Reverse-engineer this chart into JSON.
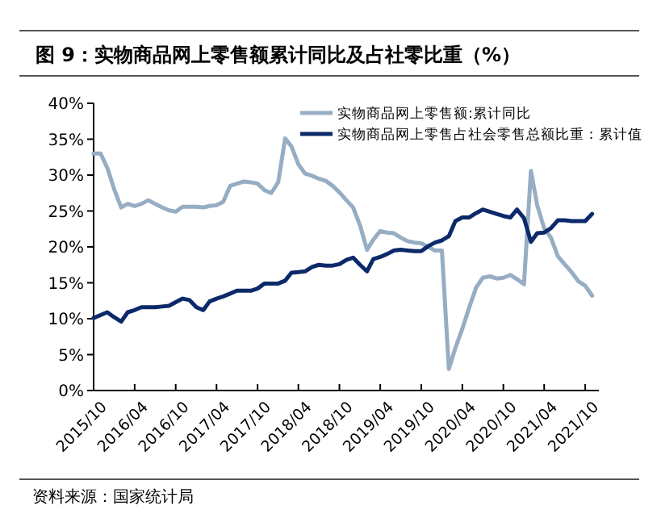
{
  "chart_data": {
    "type": "line",
    "title": "图 9：实物商品网上零售额累计同比及占社零比重（%）",
    "annotations": [
      "资料来源：国家统计局"
    ],
    "x": [
      "2015-10",
      "2015-11",
      "2015-12",
      "2016-01",
      "2016-02",
      "2016-03",
      "2016-04",
      "2016-05",
      "2016-06",
      "2016-07",
      "2016-08",
      "2016-09",
      "2016-10",
      "2016-11",
      "2016-12",
      "2017-01",
      "2017-02",
      "2017-03",
      "2017-04",
      "2017-05",
      "2017-06",
      "2017-07",
      "2017-08",
      "2017-09",
      "2017-10",
      "2017-11",
      "2017-12",
      "2018-01",
      "2018-02",
      "2018-03",
      "2018-04",
      "2018-05",
      "2018-06",
      "2018-07",
      "2018-08",
      "2018-09",
      "2018-10",
      "2018-11",
      "2018-12",
      "2019-01",
      "2019-02",
      "2019-03",
      "2019-04",
      "2019-05",
      "2019-06",
      "2019-07",
      "2019-08",
      "2019-09",
      "2019-10",
      "2019-11",
      "2019-12",
      "2020-01",
      "2020-02",
      "2020-03",
      "2020-04",
      "2020-05",
      "2020-06",
      "2020-07",
      "2020-08",
      "2020-09",
      "2020-10",
      "2020-11",
      "2020-12",
      "2021-01",
      "2021-02",
      "2021-03",
      "2021-04",
      "2021-05",
      "2021-06",
      "2021-07",
      "2021-08",
      "2021-09",
      "2021-10",
      "2021-11"
    ],
    "series": [
      {
        "name": "实物商品网上零售额:累计同比",
        "color": "#97adc3",
        "values": [
          33,
          33,
          31,
          28,
          25.5,
          26,
          25.7,
          26,
          26.5,
          26,
          25.5,
          25.1,
          24.9,
          25.6,
          25.6,
          25.6,
          25.5,
          25.7,
          25.8,
          26.3,
          28.5,
          28.8,
          29.1,
          29,
          28.8,
          27.9,
          27.5,
          29,
          35.1,
          34,
          31.5,
          30.2,
          29.9,
          29.5,
          29.2,
          28.5,
          27.6,
          26.5,
          25.5,
          23,
          19.6,
          21,
          22.2,
          22,
          21.9,
          21.3,
          20.8,
          20.6,
          20.5,
          20,
          19.5,
          19.5,
          3,
          5.9,
          8.6,
          11.5,
          14.3,
          15.7,
          15.9,
          15.6,
          15.7,
          16.1,
          15.5,
          14.8,
          30.6,
          25.8,
          22.6,
          21.3,
          18.7,
          17.6,
          16.5,
          15.2,
          14.6,
          13.2
        ]
      },
      {
        "name": "实物商品网上零售占社会零售总额比重：累计值",
        "color": "#0c2a6a",
        "values": [
          10.1,
          10.5,
          10.9,
          10.2,
          9.6,
          10.9,
          11.2,
          11.6,
          11.6,
          11.6,
          11.7,
          11.8,
          12.3,
          12.8,
          12.6,
          11.6,
          11.2,
          12.4,
          12.8,
          13.1,
          13.5,
          13.9,
          13.9,
          13.9,
          14.2,
          14.9,
          14.9,
          14.9,
          15.3,
          16.4,
          16.5,
          16.6,
          17.2,
          17.5,
          17.4,
          17.4,
          17.6,
          18.2,
          18.5,
          17.5,
          16.6,
          18.3,
          18.6,
          19,
          19.5,
          19.6,
          19.5,
          19.4,
          19.4,
          20.1,
          20.6,
          20.9,
          21.5,
          23.6,
          24.1,
          24.1,
          24.7,
          25.2,
          24.9,
          24.6,
          24.3,
          24.1,
          25.2,
          24,
          20.7,
          21.9,
          22,
          22.6,
          23.7,
          23.7,
          23.6,
          23.6,
          23.6,
          24.6
        ]
      }
    ],
    "xlim": [
      "2015-10",
      "2021-12"
    ],
    "xticks": [
      {
        "value": "2015-10",
        "label": "2015/10"
      },
      {
        "value": "2016-04",
        "label": "2016/04"
      },
      {
        "value": "2016-10",
        "label": "2016/10"
      },
      {
        "value": "2017-04",
        "label": "2017/04"
      },
      {
        "value": "2017-10",
        "label": "2017/10"
      },
      {
        "value": "2018-04",
        "label": "2018/04"
      },
      {
        "value": "2018-10",
        "label": "2018/10"
      },
      {
        "value": "2019-04",
        "label": "2019/04"
      },
      {
        "value": "2019-10",
        "label": "2019/10"
      },
      {
        "value": "2020-04",
        "label": "2020/04"
      },
      {
        "value": "2020-10",
        "label": "2020/10"
      },
      {
        "value": "2021-04",
        "label": "2021/04"
      },
      {
        "value": "2021-10",
        "label": "2021/10"
      }
    ],
    "ylim": [
      0,
      40
    ],
    "yticks": [
      {
        "value": 0,
        "label": "0%"
      },
      {
        "value": 5,
        "label": "5%"
      },
      {
        "value": 10,
        "label": "10%"
      },
      {
        "value": 15,
        "label": "15%"
      },
      {
        "value": 20,
        "label": "20%"
      },
      {
        "value": 25,
        "label": "25%"
      },
      {
        "value": 30,
        "label": "30%"
      },
      {
        "value": 35,
        "label": "35%"
      },
      {
        "value": 40,
        "label": "40%"
      }
    ],
    "grid": false,
    "legend": "top right",
    "marker": "none",
    "line_style": "solid"
  }
}
